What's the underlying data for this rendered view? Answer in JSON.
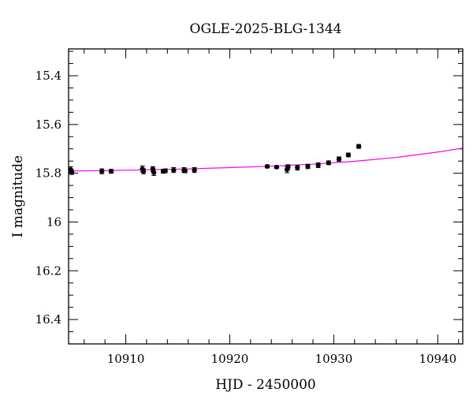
{
  "chart_data": {
    "type": "scatter",
    "title": "OGLE-2025-BLG-1344",
    "xlabel": "HJD - 2450000",
    "ylabel": "I magnitude",
    "xlim": [
      10904.5,
      10942.4
    ],
    "ylim": [
      15.29,
      16.5
    ],
    "y_inverted": true,
    "xticks": [
      10910,
      10920,
      10930,
      10940
    ],
    "xtick_labels": [
      "10910",
      "10920",
      "10930",
      "10940"
    ],
    "yticks": [
      15.4,
      15.6,
      15.8,
      16,
      16.2,
      16.4
    ],
    "ytick_labels": [
      "15.4",
      "15.6",
      "15.8",
      "16",
      "16.2",
      "16.4"
    ],
    "grid": false,
    "series": [
      {
        "name": "data",
        "color": "#000000",
        "x": [
          10904.7,
          10904.8,
          10907.7,
          10908.6,
          10911.6,
          10911.7,
          10912.6,
          10912.7,
          10913.6,
          10913.8,
          10914.6,
          10915.6,
          10915.7,
          10916.6,
          10923.6,
          10924.5,
          10925.5,
          10925.6,
          10926.5,
          10927.5,
          10928.5,
          10929.5,
          10930.5,
          10931.4,
          10932.4
        ],
        "y": [
          15.785,
          15.795,
          15.792,
          15.792,
          15.782,
          15.792,
          15.783,
          15.797,
          15.792,
          15.79,
          15.787,
          15.787,
          15.79,
          15.787,
          15.772,
          15.775,
          15.785,
          15.775,
          15.777,
          15.772,
          15.767,
          15.757,
          15.742,
          15.725,
          15.69
        ],
        "yerr": [
          0.012,
          0.01,
          0.01,
          0.008,
          0.012,
          0.01,
          0.01,
          0.012,
          0.008,
          0.008,
          0.01,
          0.01,
          0.008,
          0.01,
          0.006,
          0.005,
          0.013,
          0.01,
          0.01,
          0.009,
          0.01,
          0.008,
          0.009,
          0.008,
          0.008
        ]
      },
      {
        "name": "model",
        "color": "#ff00ff",
        "x": [
          10904.5,
          10908,
          10912,
          10916,
          10920,
          10924,
          10928,
          10932,
          10936,
          10940,
          10942.4
        ],
        "y": [
          15.791,
          15.789,
          15.786,
          15.782,
          15.777,
          15.771,
          15.763,
          15.751,
          15.735,
          15.713,
          15.697
        ]
      }
    ]
  }
}
